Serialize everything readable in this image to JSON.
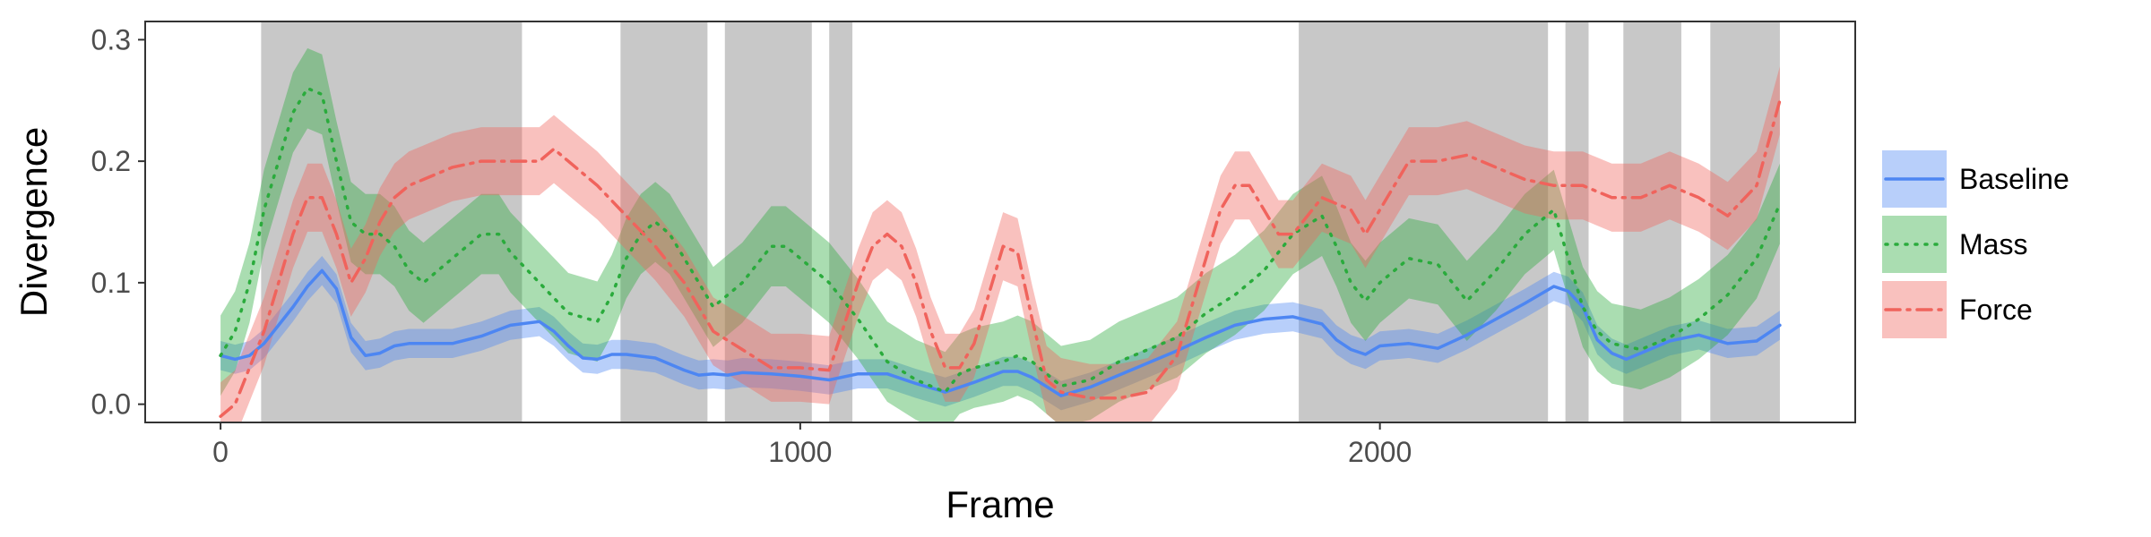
{
  "chart_data": {
    "type": "line",
    "xlabel": "Frame",
    "ylabel": "Divergence",
    "xlim": [
      -130,
      2820
    ],
    "ylim": [
      -0.015,
      0.315
    ],
    "x_ticks": [
      0,
      1000,
      2000
    ],
    "x_tick_labels": [
      "0",
      "1000",
      "2000"
    ],
    "y_ticks": [
      0.0,
      0.1,
      0.2,
      0.3
    ],
    "y_tick_labels": [
      "0.0",
      "0.1",
      "0.2",
      "0.3"
    ],
    "grid": false,
    "legend_position": "right",
    "shaded_regions": [
      [
        70,
        520
      ],
      [
        690,
        840
      ],
      [
        870,
        1020
      ],
      [
        1050,
        1090
      ],
      [
        1860,
        2290
      ],
      [
        2320,
        2360
      ],
      [
        2420,
        2520
      ],
      [
        2570,
        2690
      ]
    ],
    "shade_color": "#c8c8c8",
    "series": [
      {
        "name": "Baseline",
        "color": "#4d86f2",
        "style": "solid",
        "x": [
          0,
          25,
          50,
          75,
          100,
          125,
          150,
          175,
          200,
          225,
          250,
          275,
          300,
          325,
          350,
          375,
          400,
          450,
          500,
          550,
          575,
          600,
          625,
          650,
          675,
          700,
          750,
          800,
          825,
          850,
          875,
          900,
          950,
          1000,
          1050,
          1100,
          1150,
          1200,
          1250,
          1300,
          1350,
          1375,
          1400,
          1450,
          1500,
          1550,
          1600,
          1650,
          1700,
          1750,
          1800,
          1850,
          1900,
          1925,
          1950,
          1975,
          2000,
          2050,
          2100,
          2150,
          2200,
          2250,
          2300,
          2325,
          2350,
          2375,
          2400,
          2425,
          2450,
          2500,
          2550,
          2600,
          2650,
          2690
        ],
        "y": [
          0.04,
          0.037,
          0.04,
          0.05,
          0.065,
          0.08,
          0.097,
          0.11,
          0.095,
          0.055,
          0.04,
          0.042,
          0.048,
          0.05,
          0.05,
          0.05,
          0.05,
          0.056,
          0.065,
          0.068,
          0.06,
          0.048,
          0.038,
          0.037,
          0.041,
          0.041,
          0.038,
          0.028,
          0.024,
          0.025,
          0.024,
          0.026,
          0.025,
          0.023,
          0.02,
          0.025,
          0.025,
          0.017,
          0.01,
          0.018,
          0.027,
          0.027,
          0.022,
          0.007,
          0.014,
          0.024,
          0.034,
          0.044,
          0.055,
          0.065,
          0.07,
          0.072,
          0.066,
          0.053,
          0.045,
          0.041,
          0.048,
          0.05,
          0.046,
          0.057,
          0.07,
          0.083,
          0.097,
          0.093,
          0.08,
          0.053,
          0.042,
          0.037,
          0.042,
          0.052,
          0.057,
          0.05,
          0.052,
          0.065
        ],
        "band": 0.012
      },
      {
        "name": "Mass",
        "color": "#2aab3c",
        "style": "dotted",
        "x": [
          0,
          25,
          50,
          75,
          100,
          125,
          150,
          175,
          200,
          225,
          250,
          275,
          300,
          325,
          350,
          400,
          450,
          480,
          500,
          550,
          600,
          650,
          675,
          700,
          725,
          750,
          775,
          800,
          825,
          850,
          875,
          900,
          950,
          975,
          1000,
          1050,
          1100,
          1150,
          1200,
          1250,
          1275,
          1300,
          1350,
          1375,
          1400,
          1450,
          1500,
          1550,
          1600,
          1650,
          1700,
          1750,
          1800,
          1850,
          1900,
          1925,
          1950,
          1975,
          2000,
          2050,
          2100,
          2150,
          2200,
          2250,
          2300,
          2325,
          2350,
          2375,
          2400,
          2450,
          2500,
          2550,
          2600,
          2650,
          2690
        ],
        "y": [
          0.04,
          0.06,
          0.1,
          0.16,
          0.2,
          0.24,
          0.26,
          0.255,
          0.2,
          0.15,
          0.14,
          0.14,
          0.13,
          0.11,
          0.1,
          0.12,
          0.14,
          0.14,
          0.125,
          0.1,
          0.075,
          0.068,
          0.09,
          0.12,
          0.14,
          0.15,
          0.14,
          0.12,
          0.1,
          0.08,
          0.09,
          0.1,
          0.13,
          0.13,
          0.12,
          0.1,
          0.07,
          0.035,
          0.02,
          0.01,
          0.025,
          0.03,
          0.035,
          0.04,
          0.035,
          0.015,
          0.02,
          0.035,
          0.045,
          0.055,
          0.075,
          0.09,
          0.11,
          0.14,
          0.155,
          0.13,
          0.1,
          0.085,
          0.1,
          0.12,
          0.115,
          0.085,
          0.11,
          0.14,
          0.16,
          0.12,
          0.08,
          0.06,
          0.05,
          0.045,
          0.055,
          0.07,
          0.09,
          0.12,
          0.165
        ],
        "band": 0.033
      },
      {
        "name": "Force",
        "color": "#f0635c",
        "style": "dashdot",
        "x": [
          0,
          25,
          50,
          75,
          100,
          125,
          150,
          175,
          200,
          225,
          250,
          275,
          300,
          325,
          350,
          400,
          450,
          500,
          550,
          575,
          600,
          650,
          700,
          750,
          800,
          850,
          900,
          950,
          1000,
          1050,
          1100,
          1125,
          1150,
          1175,
          1200,
          1225,
          1250,
          1275,
          1300,
          1350,
          1375,
          1400,
          1425,
          1450,
          1500,
          1550,
          1600,
          1650,
          1700,
          1725,
          1750,
          1775,
          1800,
          1825,
          1850,
          1900,
          1950,
          1975,
          2000,
          2050,
          2100,
          2150,
          2200,
          2250,
          2300,
          2350,
          2400,
          2450,
          2500,
          2550,
          2600,
          2650,
          2690
        ],
        "y": [
          -0.01,
          0.0,
          0.03,
          0.06,
          0.1,
          0.14,
          0.17,
          0.17,
          0.14,
          0.1,
          0.12,
          0.15,
          0.17,
          0.18,
          0.185,
          0.195,
          0.2,
          0.2,
          0.2,
          0.21,
          0.2,
          0.18,
          0.155,
          0.13,
          0.1,
          0.06,
          0.045,
          0.03,
          0.03,
          0.028,
          0.1,
          0.13,
          0.14,
          0.13,
          0.1,
          0.06,
          0.03,
          0.03,
          0.05,
          0.13,
          0.125,
          0.07,
          0.02,
          0.01,
          0.005,
          0.005,
          0.01,
          0.04,
          0.12,
          0.16,
          0.18,
          0.18,
          0.16,
          0.14,
          0.14,
          0.17,
          0.16,
          0.14,
          0.16,
          0.2,
          0.2,
          0.205,
          0.195,
          0.185,
          0.18,
          0.18,
          0.17,
          0.17,
          0.18,
          0.17,
          0.155,
          0.18,
          0.25
        ],
        "band": 0.028
      }
    ]
  }
}
